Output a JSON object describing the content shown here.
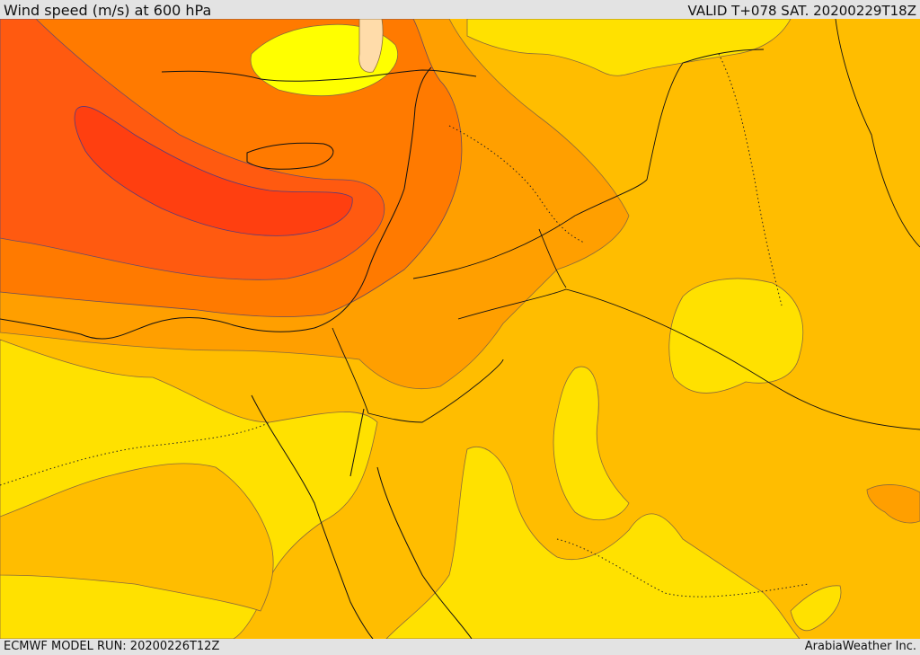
{
  "header": {
    "title": "Wind speed (m/s) at 600 hPa",
    "valid_time": "VALID T+078 SAT. 20200229T18Z"
  },
  "footer": {
    "model_run": "ECMWF MODEL RUN: 20200226T12Z",
    "credit": "ArabiaWeather Inc."
  },
  "map": {
    "variable": "wind speed",
    "units": "m/s",
    "pressure_level_hpa": 600,
    "palette": {
      "band_lowest": "#fff9a8",
      "band_1": "#ffff00",
      "band_2": "#ffe100",
      "band_3": "#ffbd00",
      "band_4": "#ff9f00",
      "band_5": "#ff7a00",
      "band_6": "#ff5a10",
      "band_highest": "#ff3f10",
      "calm_patch": "#ffdcaa"
    }
  }
}
